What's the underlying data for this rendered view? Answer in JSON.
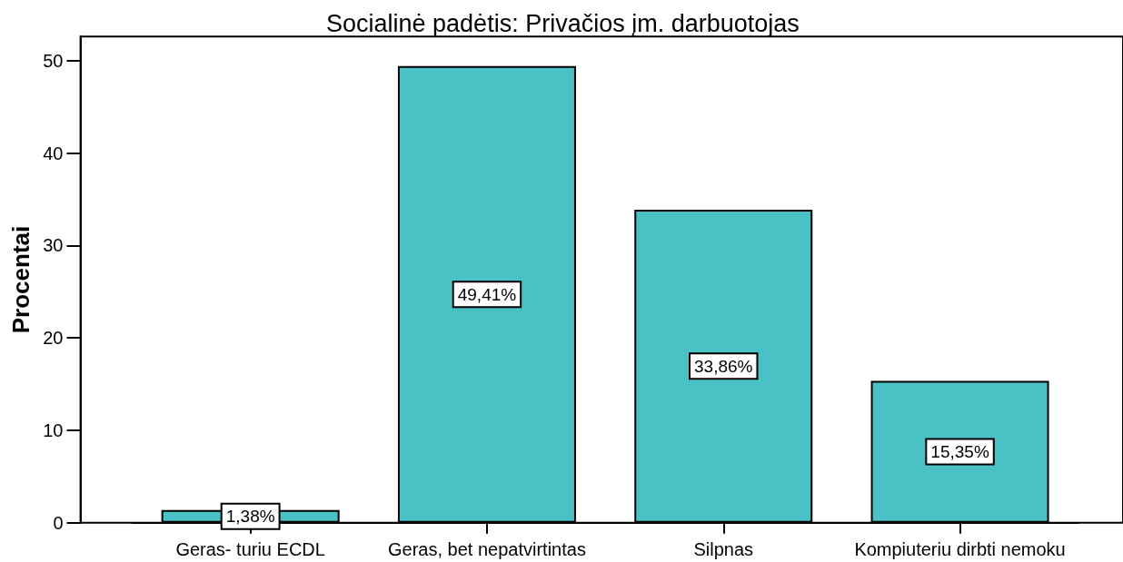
{
  "chart_data": {
    "type": "bar",
    "title": "Socialinė padėtis: Privačios įm. darbuotojas",
    "ylabel": "Procentai",
    "categories": [
      "Geras- turiu ECDL",
      "Geras, bet nepatvirtintas",
      "Silpnas",
      "Kompiuteriu dirbti nemoku"
    ],
    "values": [
      1.38,
      49.41,
      33.86,
      15.35
    ],
    "value_labels": [
      "1,38%",
      "49,41%",
      "33,86%",
      "15,35%"
    ],
    "color": "#49c1c5",
    "ylim": [
      0,
      52.6
    ],
    "yticks": [
      0,
      10,
      20,
      30,
      40,
      50
    ],
    "grid": false
  }
}
